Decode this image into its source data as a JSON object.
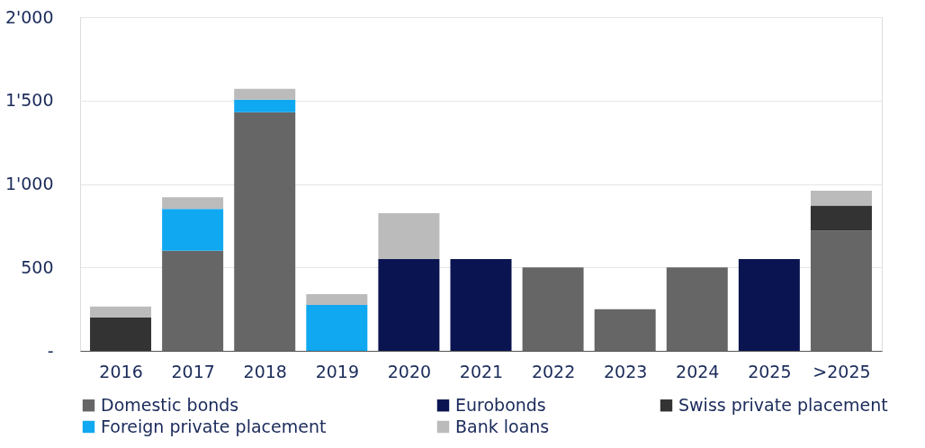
{
  "chart_data": {
    "type": "bar",
    "stacked": true,
    "categories": [
      "2016",
      "2017",
      "2018",
      "2019",
      "2020",
      "2021",
      "2022",
      "2023",
      "2024",
      "2025",
      ">2025"
    ],
    "series": [
      {
        "name": "Domestic bonds",
        "color": "#666666",
        "values": [
          null,
          600,
          1430,
          null,
          null,
          null,
          500,
          250,
          500,
          null,
          720
        ]
      },
      {
        "name": "Eurobonds",
        "color": "#0a1450",
        "values": [
          null,
          null,
          null,
          null,
          550,
          550,
          null,
          null,
          null,
          550,
          null
        ]
      },
      {
        "name": "Swiss private placement",
        "color": "#333333",
        "values": [
          200,
          null,
          null,
          null,
          null,
          null,
          null,
          null,
          null,
          null,
          150
        ]
      },
      {
        "name": "Foreign private placement",
        "color": "#10a8f0",
        "values": [
          null,
          250,
          75,
          275,
          null,
          null,
          null,
          null,
          null,
          null,
          null
        ]
      },
      {
        "name": "Bank loans",
        "color": "#bbbbbb",
        "values": [
          65,
          70,
          65,
          65,
          275,
          null,
          null,
          null,
          null,
          null,
          90
        ]
      }
    ],
    "ylim": [
      0,
      2000
    ],
    "yticks": [
      {
        "value": 0,
        "label": "-"
      },
      500,
      {
        "value": 1000,
        "label": "1'000"
      },
      {
        "value": 1500,
        "label": "1'500"
      },
      {
        "value": 2000,
        "label": "2'000"
      }
    ],
    "grid": "y",
    "legend": "bottom"
  }
}
